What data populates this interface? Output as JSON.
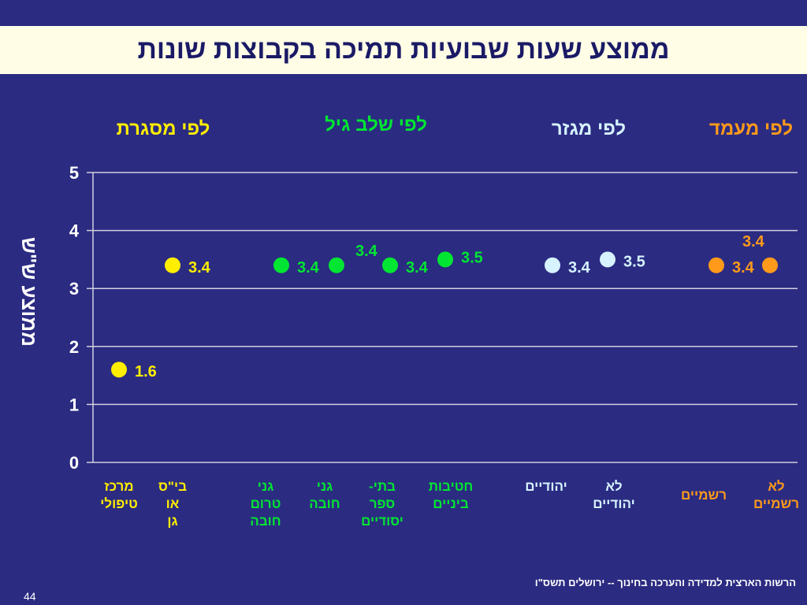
{
  "title": "ממוצע שעות שבועיות תמיכה בקבוצות שונות",
  "footer": "הרשות הארצית למדידה והערכה בחינוך -- ירושלים תשס\"ו",
  "page_number": "44",
  "colors": {
    "background": "#2b2b82",
    "title_bg": "#fffde6",
    "framework": "#ffee00",
    "age": "#00e632",
    "sector": "#d6f3ff",
    "status": "#ff9a1a"
  },
  "chart_data": {
    "type": "scatter",
    "ylabel": "ממוצע ש\"ש",
    "ylim": [
      0,
      5
    ],
    "yticks": [
      "0",
      "1",
      "2",
      "3",
      "4",
      "5"
    ],
    "grid": true,
    "groups": [
      {
        "label": "לפי מסגרת",
        "color": "#ffee00"
      },
      {
        "label": "לפי שלב גיל",
        "color": "#00e632"
      },
      {
        "label": "לפי מגזר",
        "color": "#d6f3ff"
      },
      {
        "label": "לפי מעמד",
        "color": "#ff9a1a"
      }
    ],
    "points": [
      {
        "category": "מרכז\nטיפולי",
        "value": 1.6,
        "label": "1.6",
        "group": 0
      },
      {
        "category": "בי\"ס\nאו\nגן",
        "value": 3.4,
        "label": "3.4",
        "group": 0
      },
      {
        "category": "גני\nטרום\nחובה",
        "value": 3.4,
        "label": "3.4",
        "group": 1
      },
      {
        "category": "גני\nחובה",
        "value": 3.4,
        "label": "3.4",
        "group": 1
      },
      {
        "category": "בתי-\nספר\nיסודיים",
        "value": 3.4,
        "label": "3.4",
        "group": 1
      },
      {
        "category": "חטיבות\nביניים",
        "value": 3.5,
        "label": "3.5",
        "group": 1
      },
      {
        "category": "יהודיים",
        "value": 3.4,
        "label": "3.4",
        "group": 2
      },
      {
        "category": "לא\nיהודיים",
        "value": 3.5,
        "label": "3.5",
        "group": 2
      },
      {
        "category": "רשמיים",
        "value": 3.4,
        "label": "3.4",
        "group": 3
      },
      {
        "category": "לא\nרשמיים",
        "value": 3.4,
        "label": "3.4",
        "group": 3
      }
    ]
  }
}
